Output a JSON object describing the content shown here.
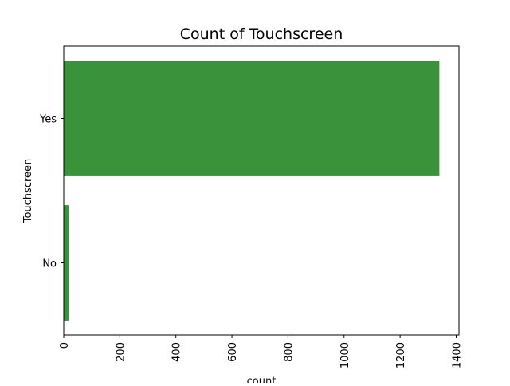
{
  "chart_data": {
    "type": "bar",
    "orientation": "horizontal",
    "title": "Count of Touchscreen",
    "xlabel": "count",
    "ylabel": "Touchscreen",
    "categories": [
      "Yes",
      "No"
    ],
    "values": [
      1340,
      17
    ],
    "xlim": [
      0,
      1410
    ],
    "xticks": [
      0,
      200,
      400,
      600,
      800,
      1000,
      1200,
      1400
    ],
    "grid": false,
    "bar_color": "#3a923a"
  }
}
